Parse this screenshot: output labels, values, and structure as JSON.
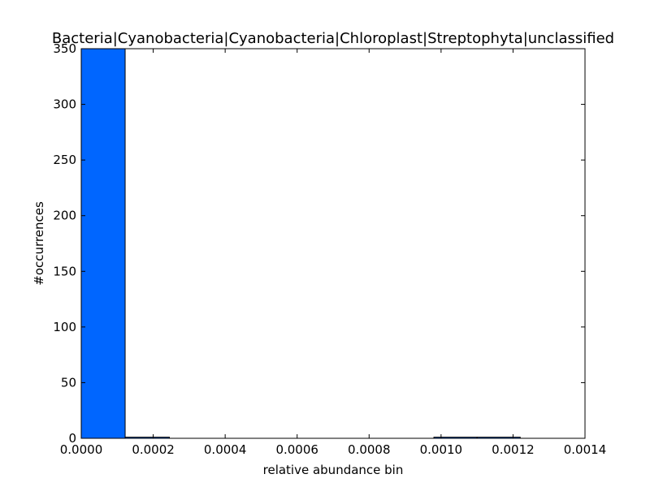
{
  "chart_data": {
    "type": "bar",
    "title": "Bacteria|Cyanobacteria|Cyanobacteria|Chloroplast|Streptophyta|unclassified",
    "xlabel": "relative abundance bin",
    "ylabel": "#occurrences",
    "xlim": [
      0,
      0.0014
    ],
    "ylim": [
      0,
      350
    ],
    "x_ticks": [
      "0.0000",
      "0.0002",
      "0.0004",
      "0.0006",
      "0.0008",
      "0.0010",
      "0.0012",
      "0.0014"
    ],
    "x_tick_values": [
      0,
      0.0002,
      0.0004,
      0.0006,
      0.0008,
      0.001,
      0.0012,
      0.0014
    ],
    "y_ticks": [
      "0",
      "50",
      "100",
      "150",
      "200",
      "250",
      "300",
      "350"
    ],
    "y_tick_values": [
      0,
      50,
      100,
      150,
      200,
      250,
      300,
      350
    ],
    "bins": [
      {
        "start": 0.0,
        "end": 0.000122,
        "count": 350
      },
      {
        "start": 0.000122,
        "end": 0.000245,
        "count": 1
      },
      {
        "start": 0.000245,
        "end": 0.000367,
        "count": 0
      },
      {
        "start": 0.000367,
        "end": 0.00049,
        "count": 0
      },
      {
        "start": 0.00049,
        "end": 0.000612,
        "count": 0
      },
      {
        "start": 0.000612,
        "end": 0.000735,
        "count": 0
      },
      {
        "start": 0.000735,
        "end": 0.000857,
        "count": 0
      },
      {
        "start": 0.000857,
        "end": 0.00098,
        "count": 0
      },
      {
        "start": 0.00098,
        "end": 0.0011,
        "count": 1
      },
      {
        "start": 0.0011,
        "end": 0.00122,
        "count": 1
      }
    ],
    "bar_color": "#0066ff",
    "edge_color": "#000000",
    "grid": false,
    "legend": "none"
  }
}
